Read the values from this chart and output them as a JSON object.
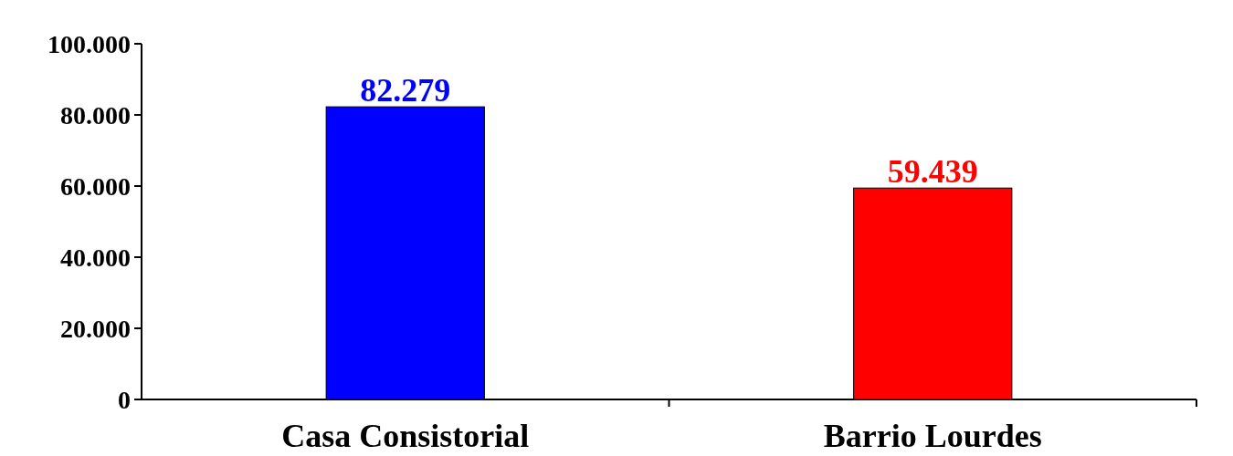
{
  "chart_data": {
    "type": "bar",
    "categories": [
      "Casa Consistorial",
      "Barrio Lourdes"
    ],
    "values": [
      82279,
      59439
    ],
    "colors": [
      "#0000ff",
      "#ff0000"
    ],
    "value_labels": [
      "82.279",
      "59.439"
    ],
    "ylim": [
      0,
      100000
    ],
    "yticks": [
      {
        "value": 0,
        "label": "0"
      },
      {
        "value": 20000,
        "label": "20.000"
      },
      {
        "value": 40000,
        "label": "40.000"
      },
      {
        "value": 60000,
        "label": "60.000"
      },
      {
        "value": 80000,
        "label": "80.000"
      },
      {
        "value": 100000,
        "label": "100.000"
      }
    ]
  }
}
